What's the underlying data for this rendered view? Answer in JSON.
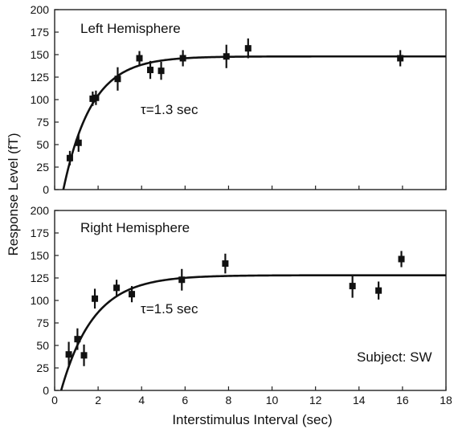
{
  "chart_data": {
    "type": "scatter",
    "ylabel": "Response Level (fT)",
    "xlabel": "Interstimulus Interval (sec)",
    "annotation_subject": "Subject: SW",
    "panels": [
      {
        "title": "Left Hemisphere",
        "tau_label": "τ=1.3 sec",
        "fit": {
          "asymptote": 148,
          "tau": 1.3,
          "x0": 0.4
        },
        "x": [
          0.7,
          1.1,
          1.75,
          1.9,
          2.9,
          3.9,
          4.4,
          4.9,
          5.9,
          7.9,
          8.9,
          15.9
        ],
        "y": [
          35,
          52,
          101,
          102,
          123,
          146,
          133,
          132,
          146,
          148,
          157,
          146
        ],
        "err": [
          8,
          10,
          8,
          8,
          13,
          8,
          10,
          10,
          9,
          13,
          11,
          9
        ]
      },
      {
        "title": "Right Hemisphere",
        "tau_label": "τ=1.5 sec",
        "fit": {
          "asymptote": 128,
          "tau": 1.5,
          "x0": 0.3
        },
        "x": [
          0.65,
          1.05,
          1.35,
          1.85,
          2.85,
          3.55,
          5.85,
          7.85,
          13.7,
          14.9,
          15.95
        ],
        "y": [
          40,
          57,
          39,
          102,
          114,
          107,
          123,
          141,
          116,
          111,
          146
        ],
        "err": [
          14,
          12,
          12,
          11,
          9,
          9,
          12,
          11,
          13,
          10,
          9
        ]
      }
    ],
    "xlim": [
      0,
      18
    ],
    "ylim": [
      0,
      200
    ],
    "x_ticks": [
      "0",
      "2",
      "4",
      "6",
      "8",
      "10",
      "12",
      "14",
      "16",
      "18"
    ],
    "y_ticks": [
      "0",
      "25",
      "50",
      "75",
      "100",
      "125",
      "150",
      "175",
      "200"
    ],
    "grid": false
  }
}
